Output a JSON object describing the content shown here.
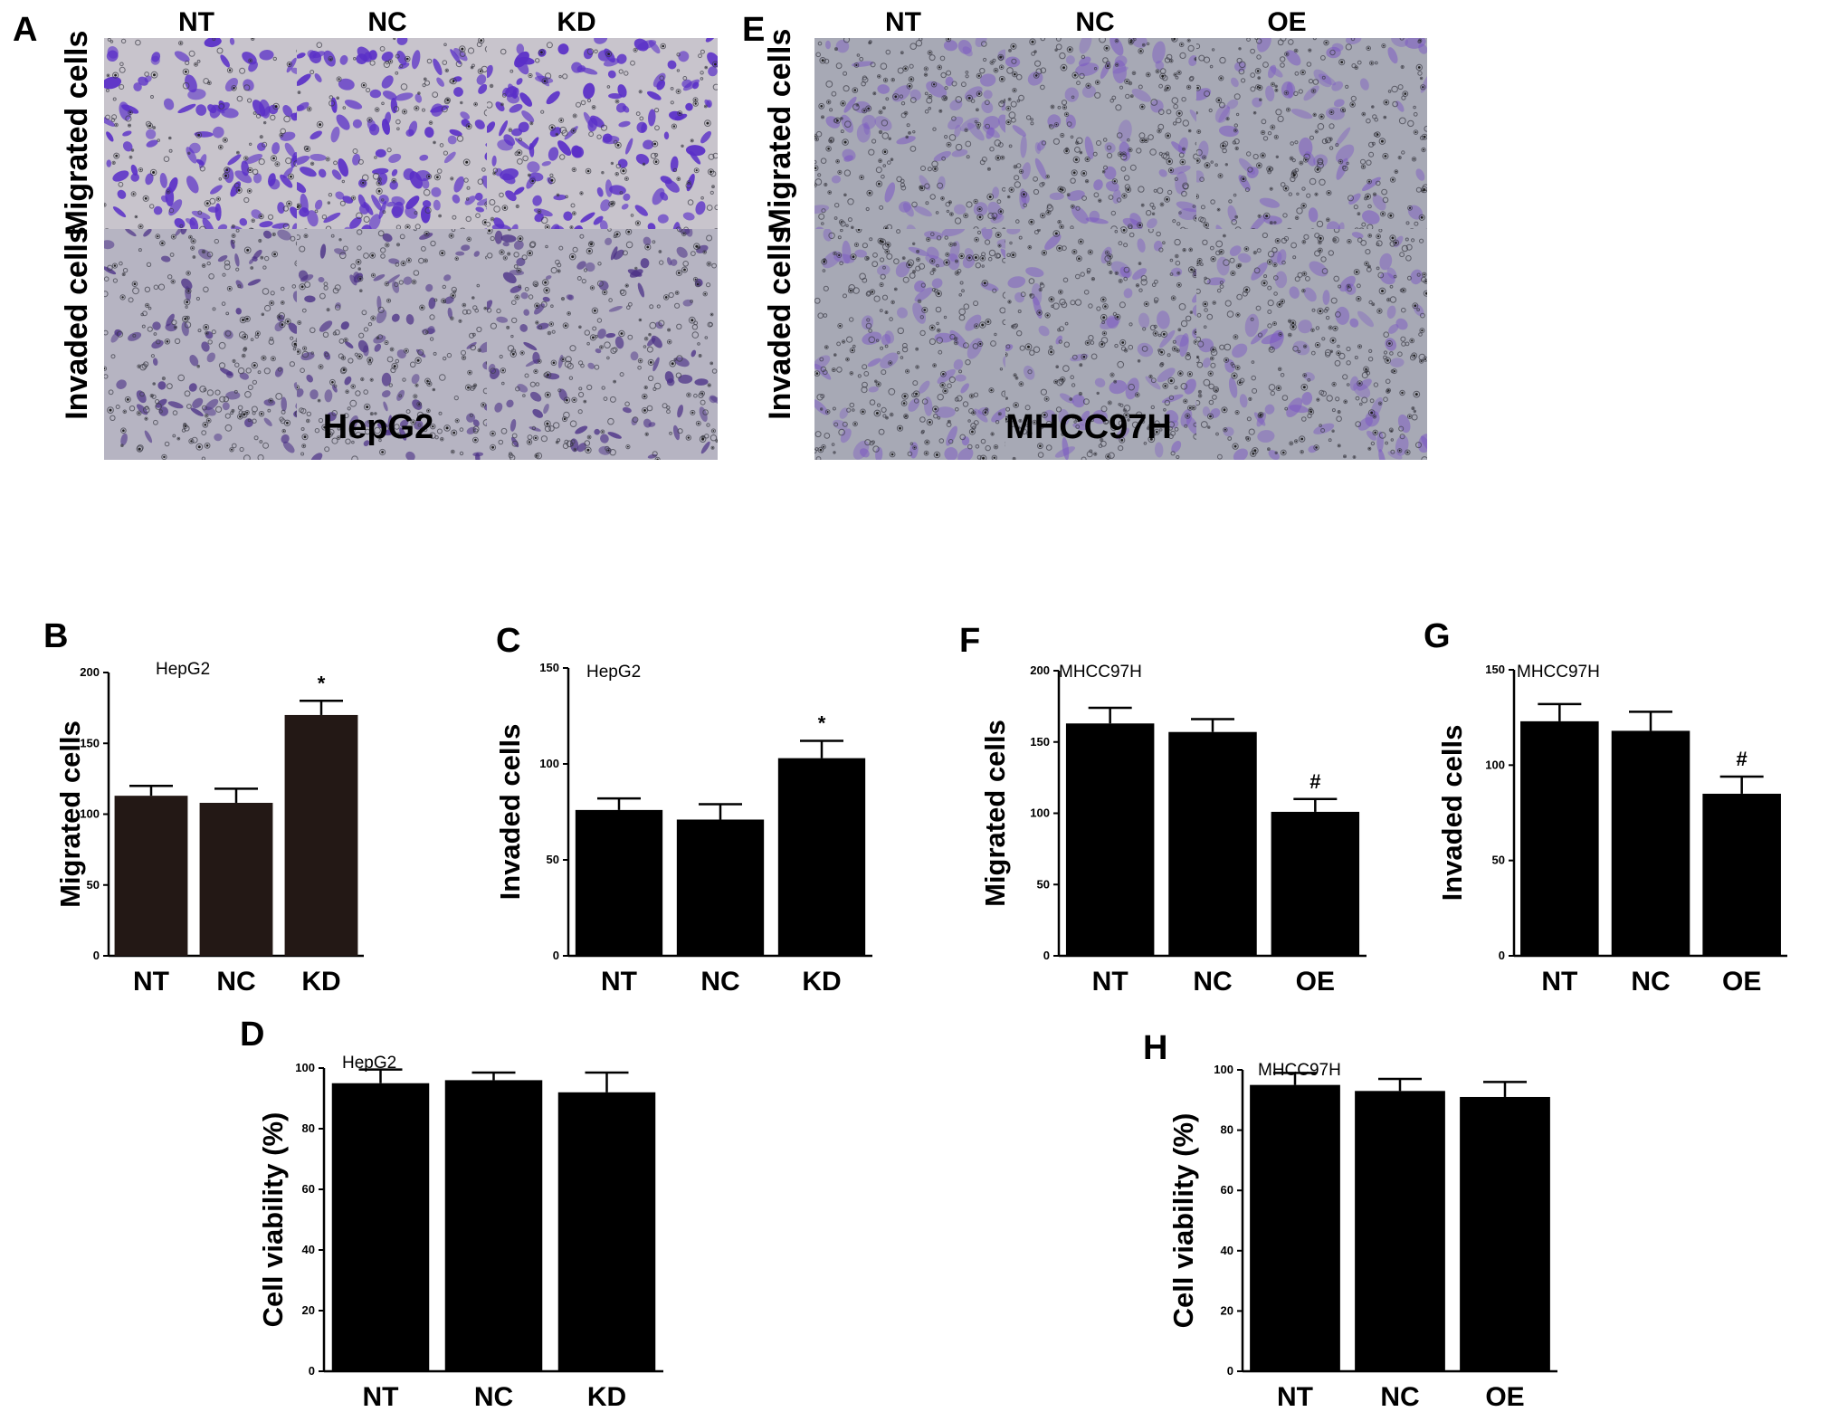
{
  "colors": {
    "bar_fill": "#000000",
    "bar_fill_hepg2_migrated": "#231815",
    "stain_hepg2_migrated": "#5a2fc8",
    "stain_hepg2_invaded": "#4a2f86",
    "stain_mhcc97h": "#7a55c4",
    "background_hepg2_migrated": "#c8c4cc",
    "background_invaded": "#b6b4c2",
    "background_mhcc97h": "#a7a9b5"
  },
  "panels": {
    "A": {
      "letter": "A",
      "cell_line": "HepG2",
      "columns": [
        "NT",
        "NC",
        "KD"
      ],
      "rows": [
        "Migrated cells",
        "Invaded cells"
      ]
    },
    "E": {
      "letter": "E",
      "cell_line": "MHCC97H",
      "columns": [
        "NT",
        "NC",
        "OE"
      ],
      "rows": [
        "Migrated cells",
        "Invaded cells"
      ]
    }
  },
  "chart_data": [
    {
      "id": "B",
      "letter": "B",
      "type": "bar",
      "title": "HepG2",
      "ylabel": "Migrated cells",
      "categories": [
        "NT",
        "NC",
        "KD"
      ],
      "values": [
        113,
        108,
        170
      ],
      "errors": [
        7,
        10,
        10
      ],
      "significance": [
        "",
        "",
        "*"
      ],
      "ylim": [
        0,
        200
      ],
      "yticks": [
        0,
        50,
        100,
        150,
        200
      ],
      "tick_labels": [
        "0",
        "50",
        "100",
        "150",
        "200"
      ],
      "bar_color": "#231815"
    },
    {
      "id": "C",
      "letter": "C",
      "type": "bar",
      "title": "HepG2",
      "ylabel": "Invaded cells",
      "categories": [
        "NT",
        "NC",
        "KD"
      ],
      "values": [
        76,
        71,
        103
      ],
      "errors": [
        6,
        8,
        9
      ],
      "significance": [
        "",
        "",
        "*"
      ],
      "ylim": [
        0,
        150
      ],
      "yticks": [
        0,
        50,
        100,
        150
      ],
      "tick_labels": [
        "0",
        "50",
        "100",
        "150"
      ],
      "bar_color": "#000000"
    },
    {
      "id": "D",
      "letter": "D",
      "type": "bar",
      "title": "HepG2",
      "ylabel": "Cell viability (%)",
      "categories": [
        "NT",
        "NC",
        "KD"
      ],
      "values": [
        95,
        96,
        92
      ],
      "errors": [
        4.5,
        2.5,
        6.5
      ],
      "significance": [
        "",
        "",
        ""
      ],
      "ylim": [
        0,
        100
      ],
      "yticks": [
        0,
        20,
        40,
        60,
        80,
        100
      ],
      "tick_labels": [
        "0",
        "20",
        "40",
        "60",
        "80",
        "100"
      ],
      "bar_color": "#000000"
    },
    {
      "id": "F",
      "letter": "F",
      "type": "bar",
      "title": "MHCC97H",
      "ylabel": "Migrated cells",
      "categories": [
        "NT",
        "NC",
        "OE"
      ],
      "values": [
        163,
        157,
        101
      ],
      "errors": [
        11,
        9,
        9
      ],
      "significance": [
        "",
        "",
        "#"
      ],
      "ylim": [
        0,
        200
      ],
      "yticks": [
        0,
        50,
        100,
        150,
        200
      ],
      "tick_labels": [
        "0",
        "50",
        "100",
        "150",
        "200"
      ],
      "bar_color": "#000000"
    },
    {
      "id": "G",
      "letter": "G",
      "type": "bar",
      "title": "MHCC97H",
      "ylabel": "Invaded cells",
      "categories": [
        "NT",
        "NC",
        "OE"
      ],
      "values": [
        123,
        118,
        85
      ],
      "errors": [
        9,
        10,
        9
      ],
      "significance": [
        "",
        "",
        "#"
      ],
      "ylim": [
        0,
        150
      ],
      "yticks": [
        0,
        50,
        100,
        150
      ],
      "tick_labels": [
        "0",
        "50",
        "100",
        "150"
      ],
      "bar_color": "#000000"
    },
    {
      "id": "H",
      "letter": "H",
      "type": "bar",
      "title": "MHCC97H",
      "ylabel": "Cell viability (%)",
      "categories": [
        "NT",
        "NC",
        "OE"
      ],
      "values": [
        95,
        93,
        91
      ],
      "errors": [
        4,
        4,
        5
      ],
      "significance": [
        "",
        "",
        ""
      ],
      "ylim": [
        0,
        100
      ],
      "yticks": [
        0,
        20,
        40,
        60,
        80,
        100
      ],
      "tick_labels": [
        "0",
        "20",
        "40",
        "60",
        "80",
        "100"
      ],
      "bar_color": "#000000"
    }
  ]
}
